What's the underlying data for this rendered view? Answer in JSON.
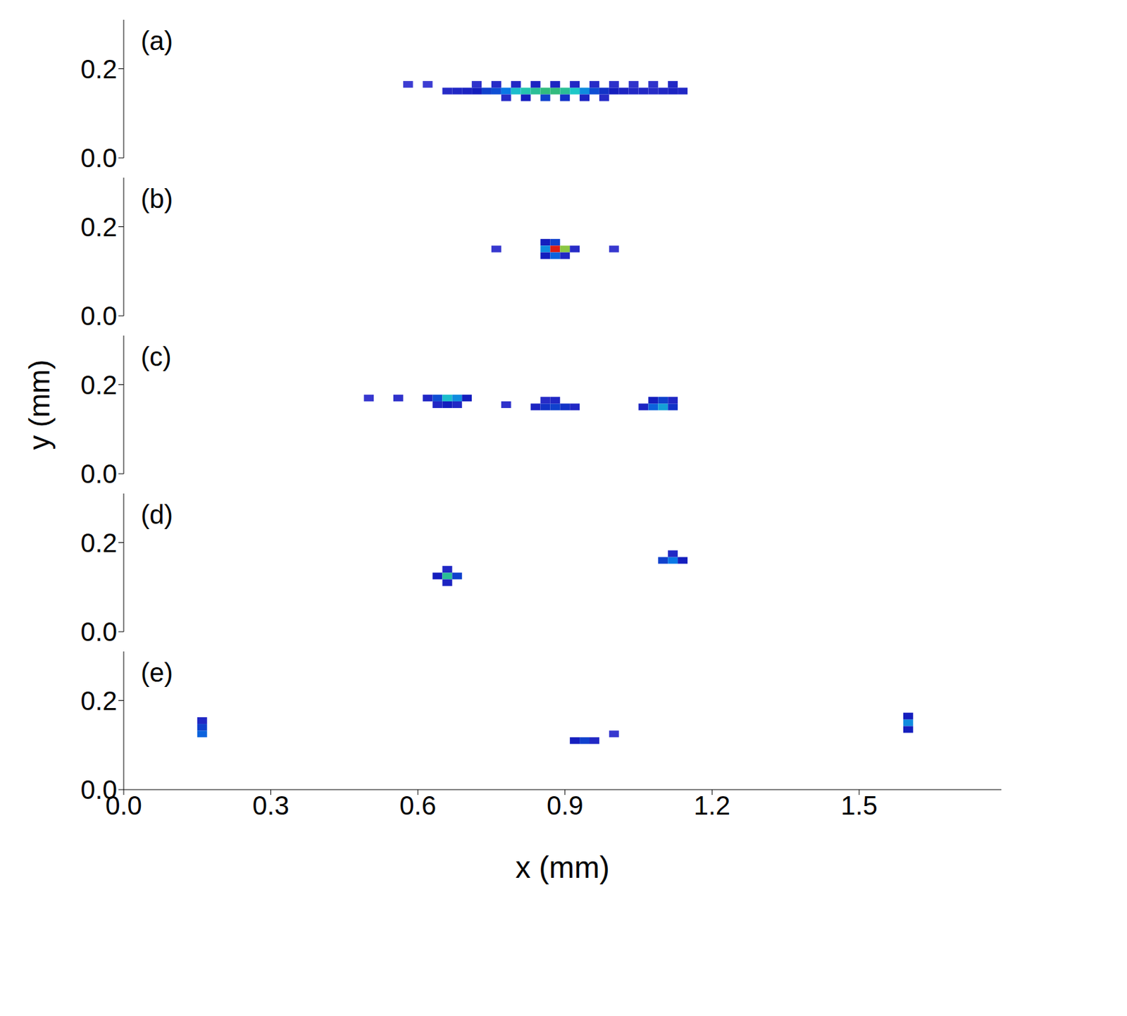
{
  "chart_data": [
    {
      "type": "heatmap",
      "title": "(a)",
      "xlim": [
        0,
        1.79
      ],
      "xticks": [
        {
          "value": 0,
          "label": "0.0"
        },
        0.3,
        0.6,
        0.9,
        1.2,
        1.5
      ],
      "ylim": [
        0,
        0.31
      ],
      "yticks": [
        {
          "value": 0,
          "label": "0.0"
        },
        0.2
      ],
      "tick_labels": "y",
      "clim": [
        0,
        1
      ],
      "cell_size": [
        0.02,
        0.015
      ],
      "cells": [
        [
          0.58,
          0.165,
          0.2
        ],
        [
          0.62,
          0.165,
          0.2
        ],
        [
          0.66,
          0.15,
          0.28
        ],
        [
          0.68,
          0.15,
          0.3
        ],
        [
          0.7,
          0.15,
          0.32
        ],
        [
          0.72,
          0.15,
          0.35
        ],
        [
          0.74,
          0.15,
          0.4
        ],
        [
          0.76,
          0.15,
          0.42
        ],
        [
          0.78,
          0.15,
          0.48
        ],
        [
          0.8,
          0.15,
          0.55
        ],
        [
          0.82,
          0.15,
          0.58
        ],
        [
          0.84,
          0.15,
          0.6
        ],
        [
          0.86,
          0.15,
          0.62
        ],
        [
          0.88,
          0.15,
          0.62
        ],
        [
          0.9,
          0.15,
          0.6
        ],
        [
          0.92,
          0.15,
          0.56
        ],
        [
          0.94,
          0.15,
          0.5
        ],
        [
          0.96,
          0.15,
          0.42
        ],
        [
          0.98,
          0.15,
          0.38
        ],
        [
          1.0,
          0.15,
          0.35
        ],
        [
          1.02,
          0.15,
          0.32
        ],
        [
          1.04,
          0.15,
          0.3
        ],
        [
          1.06,
          0.15,
          0.3
        ],
        [
          1.08,
          0.15,
          0.28
        ],
        [
          1.1,
          0.15,
          0.3
        ],
        [
          1.12,
          0.15,
          0.32
        ],
        [
          1.14,
          0.15,
          0.3
        ],
        [
          0.72,
          0.165,
          0.25
        ],
        [
          0.76,
          0.165,
          0.28
        ],
        [
          0.8,
          0.165,
          0.3
        ],
        [
          0.84,
          0.165,
          0.32
        ],
        [
          0.88,
          0.165,
          0.32
        ],
        [
          0.92,
          0.165,
          0.3
        ],
        [
          0.96,
          0.165,
          0.28
        ],
        [
          1.0,
          0.165,
          0.26
        ],
        [
          1.04,
          0.165,
          0.25
        ],
        [
          1.08,
          0.165,
          0.25
        ],
        [
          1.12,
          0.165,
          0.3
        ],
        [
          0.78,
          0.135,
          0.28
        ],
        [
          0.82,
          0.135,
          0.35
        ],
        [
          0.86,
          0.135,
          0.4
        ],
        [
          0.9,
          0.135,
          0.38
        ],
        [
          0.94,
          0.135,
          0.32
        ],
        [
          0.98,
          0.135,
          0.28
        ]
      ]
    },
    {
      "type": "heatmap",
      "title": "(b)",
      "xlim": [
        0,
        1.79
      ],
      "xticks": [
        {
          "value": 0,
          "label": "0.0"
        },
        0.3,
        0.6,
        0.9,
        1.2,
        1.5
      ],
      "ylim": [
        0,
        0.31
      ],
      "yticks": [
        {
          "value": 0,
          "label": "0.0"
        },
        0.2
      ],
      "tick_labels": "y",
      "clim": [
        0,
        1
      ],
      "cell_size": [
        0.02,
        0.015
      ],
      "cells": [
        [
          0.86,
          0.165,
          0.35
        ],
        [
          0.88,
          0.165,
          0.4
        ],
        [
          0.86,
          0.15,
          0.5
        ],
        [
          0.88,
          0.15,
          0.95
        ],
        [
          0.9,
          0.15,
          0.72
        ],
        [
          0.86,
          0.135,
          0.35
        ],
        [
          0.88,
          0.135,
          0.45
        ],
        [
          0.9,
          0.135,
          0.3
        ],
        [
          0.92,
          0.15,
          0.28
        ],
        [
          0.76,
          0.15,
          0.22
        ],
        [
          1.0,
          0.15,
          0.22
        ]
      ]
    },
    {
      "type": "heatmap",
      "title": "(c)",
      "xlim": [
        0,
        1.79
      ],
      "xticks": [
        {
          "value": 0,
          "label": "0.0"
        },
        0.3,
        0.6,
        0.9,
        1.2,
        1.5
      ],
      "ylim": [
        0,
        0.31
      ],
      "yticks": [
        {
          "value": 0,
          "label": "0.0"
        },
        0.2
      ],
      "tick_labels": "y",
      "clim": [
        0,
        1
      ],
      "cell_size": [
        0.02,
        0.015
      ],
      "y_label": "y (mm)",
      "cells": [
        [
          0.62,
          0.17,
          0.3
        ],
        [
          0.64,
          0.17,
          0.42
        ],
        [
          0.66,
          0.17,
          0.55
        ],
        [
          0.68,
          0.17,
          0.5
        ],
        [
          0.7,
          0.17,
          0.35
        ],
        [
          0.64,
          0.155,
          0.3
        ],
        [
          0.66,
          0.155,
          0.35
        ],
        [
          0.68,
          0.155,
          0.3
        ],
        [
          0.5,
          0.17,
          0.22
        ],
        [
          0.56,
          0.17,
          0.25
        ],
        [
          0.78,
          0.155,
          0.25
        ],
        [
          0.84,
          0.15,
          0.32
        ],
        [
          0.86,
          0.15,
          0.38
        ],
        [
          0.88,
          0.15,
          0.4
        ],
        [
          0.9,
          0.15,
          0.38
        ],
        [
          0.92,
          0.15,
          0.3
        ],
        [
          0.86,
          0.165,
          0.28
        ],
        [
          0.88,
          0.165,
          0.3
        ],
        [
          1.06,
          0.15,
          0.32
        ],
        [
          1.08,
          0.15,
          0.45
        ],
        [
          1.1,
          0.15,
          0.52
        ],
        [
          1.12,
          0.15,
          0.38
        ],
        [
          1.08,
          0.165,
          0.35
        ],
        [
          1.1,
          0.165,
          0.4
        ],
        [
          1.12,
          0.165,
          0.3
        ]
      ]
    },
    {
      "type": "heatmap",
      "title": "(d)",
      "xlim": [
        0,
        1.79
      ],
      "xticks": [
        {
          "value": 0,
          "label": "0.0"
        },
        0.3,
        0.6,
        0.9,
        1.2,
        1.5
      ],
      "ylim": [
        0,
        0.31
      ],
      "yticks": [
        {
          "value": 0,
          "label": "0.0"
        },
        0.2
      ],
      "tick_labels": "y",
      "clim": [
        0,
        1
      ],
      "cell_size": [
        0.02,
        0.015
      ],
      "cells": [
        [
          0.64,
          0.125,
          0.35
        ],
        [
          0.66,
          0.125,
          0.6
        ],
        [
          0.68,
          0.125,
          0.4
        ],
        [
          0.66,
          0.11,
          0.32
        ],
        [
          0.66,
          0.14,
          0.3
        ],
        [
          1.1,
          0.16,
          0.4
        ],
        [
          1.12,
          0.16,
          0.48
        ],
        [
          1.14,
          0.16,
          0.35
        ],
        [
          1.12,
          0.175,
          0.3
        ]
      ]
    },
    {
      "type": "heatmap",
      "title": "(e)",
      "xlim": [
        0,
        1.79
      ],
      "xticks": [
        {
          "value": 0,
          "label": "0.0"
        },
        0.3,
        0.6,
        0.9,
        1.2,
        1.5
      ],
      "ylim": [
        0,
        0.31
      ],
      "yticks": [
        {
          "value": 0,
          "label": "0.0"
        },
        0.2
      ],
      "clim": [
        0,
        1
      ],
      "cell_size": [
        0.02,
        0.015
      ],
      "x_label": "x (mm)",
      "cells": [
        [
          0.16,
          0.14,
          0.4
        ],
        [
          0.16,
          0.125,
          0.45
        ],
        [
          0.16,
          0.155,
          0.3
        ],
        [
          0.92,
          0.11,
          0.35
        ],
        [
          0.94,
          0.11,
          0.4
        ],
        [
          0.96,
          0.11,
          0.3
        ],
        [
          1.0,
          0.125,
          0.22
        ],
        [
          1.6,
          0.15,
          0.5
        ],
        [
          1.6,
          0.165,
          0.35
        ],
        [
          1.6,
          0.135,
          0.35
        ]
      ]
    }
  ]
}
